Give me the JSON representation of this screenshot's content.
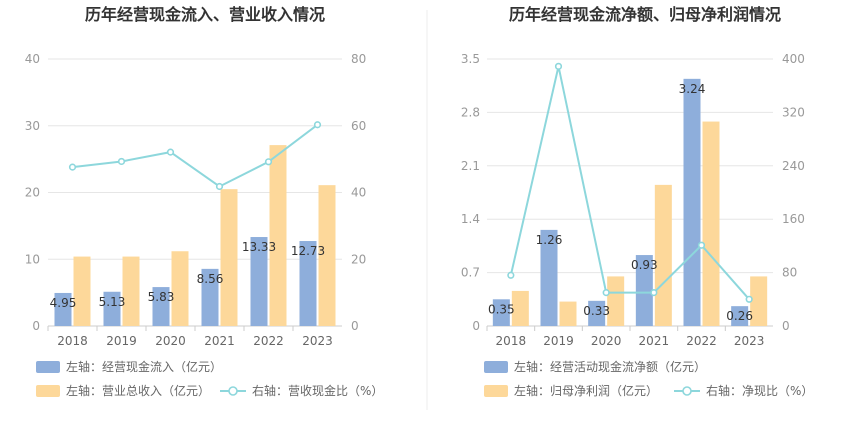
{
  "colors": {
    "bar_left": "#8eaedb",
    "bar_right": "#fdd89a",
    "line": "#8dd7dc",
    "grid": "#e6e6e6"
  },
  "chart_data": [
    {
      "type": "bar",
      "title": "历年经营现金流入、营业收入情况",
      "categories": [
        "2018",
        "2019",
        "2020",
        "2021",
        "2022",
        "2023"
      ],
      "y_left": {
        "ticks": [
          "0",
          "10",
          "20",
          "30",
          "40"
        ],
        "range": [
          0,
          40
        ]
      },
      "y_right": {
        "ticks": [
          "0",
          "20",
          "40",
          "60",
          "80"
        ],
        "range": [
          0,
          80
        ]
      },
      "series": [
        {
          "name": "左轴：经营现金流入（亿元）",
          "axis": "left",
          "kind": "bar",
          "values": [
            4.95,
            5.13,
            5.83,
            8.56,
            13.33,
            12.73
          ],
          "labels": [
            "4.95",
            "5.13",
            "5.83",
            "8.56",
            "13.33",
            "12.73"
          ]
        },
        {
          "name": "左轴：营业总收入（亿元）",
          "axis": "left",
          "kind": "bar",
          "values": [
            10.4,
            10.4,
            11.2,
            20.5,
            27.1,
            21.1
          ]
        },
        {
          "name": "右轴：营收现金比（%）",
          "axis": "right",
          "kind": "line",
          "values": [
            47.6,
            49.3,
            52.1,
            41.8,
            49.2,
            60.3
          ]
        }
      ]
    },
    {
      "type": "bar",
      "title": "历年经营现金流净额、归母净利润情况",
      "categories": [
        "2018",
        "2019",
        "2020",
        "2021",
        "2022",
        "2023"
      ],
      "y_left": {
        "ticks": [
          "0",
          "0.7",
          "1.4",
          "2.1",
          "2.8",
          "3.5"
        ],
        "range": [
          0,
          3.5
        ]
      },
      "y_right": {
        "ticks": [
          "0",
          "80",
          "160",
          "240",
          "320",
          "400"
        ],
        "range": [
          0,
          400
        ]
      },
      "series": [
        {
          "name": "左轴：经营活动现金流净额（亿元）",
          "axis": "left",
          "kind": "bar",
          "values": [
            0.35,
            1.26,
            0.33,
            0.93,
            3.24,
            0.26
          ],
          "labels": [
            "0.35",
            "1.26",
            "0.33",
            "0.93",
            "3.24",
            "0.26"
          ]
        },
        {
          "name": "左轴：归母净利润（亿元）",
          "axis": "left",
          "kind": "bar",
          "values": [
            0.46,
            0.32,
            0.65,
            1.85,
            2.68,
            0.65
          ]
        },
        {
          "name": "右轴：净现比（%）",
          "axis": "right",
          "kind": "line",
          "values": [
            76,
            389,
            50,
            50,
            121,
            40
          ]
        }
      ]
    }
  ]
}
